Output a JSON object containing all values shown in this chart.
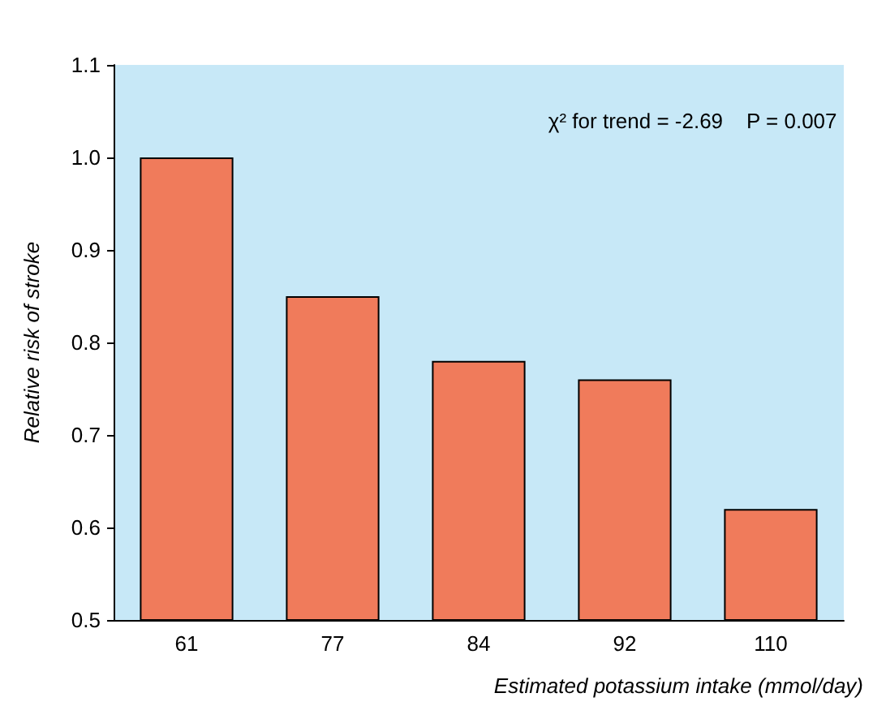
{
  "chart_data": {
    "type": "bar",
    "ylabel": "Relative risk of stroke",
    "xlabel": "Estimated potassium intake (mmol/day)",
    "categories": [
      "61",
      "77",
      "84",
      "92",
      "110"
    ],
    "values": [
      1.0,
      0.85,
      0.78,
      0.76,
      0.62
    ],
    "color": "#f07b5b",
    "ylim": [
      0.5,
      1.1
    ],
    "yticks": [
      0.5,
      0.6,
      0.7,
      0.8,
      0.9,
      {
        "value": 1,
        "label": "1.0"
      },
      1.1
    ],
    "grid": false,
    "annotations": [
      "χ² for trend = -2.69    P = 0.007"
    ]
  }
}
